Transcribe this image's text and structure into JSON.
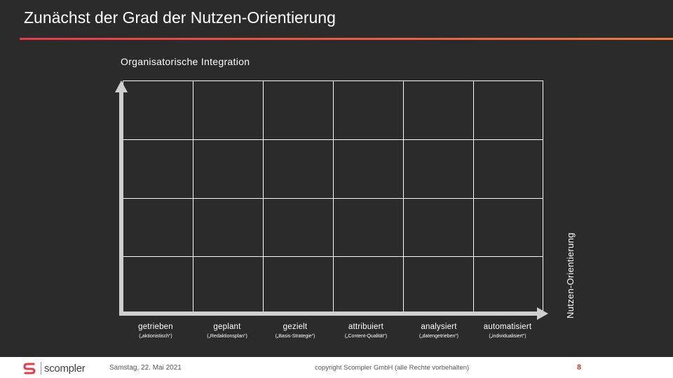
{
  "slide": {
    "title": "Zunächst der Grad der Nutzen-Orientierung",
    "accent_colors": [
      "#e63a4a",
      "#f07a3c"
    ]
  },
  "diagram": {
    "y_axis_label": "Organisatorische Integration",
    "x_axis_label": "Nutzen-Orientierung",
    "grid_columns": 6,
    "grid_rows": 4,
    "stages": [
      {
        "name": "getrieben",
        "sub": "(„aktionistisch“)"
      },
      {
        "name": "geplant",
        "sub": "(„Redaktionsplan“)"
      },
      {
        "name": "gezielt",
        "sub": "(„Basis-Strategie“)"
      },
      {
        "name": "attribuiert",
        "sub": "(„Content-Qualität“)"
      },
      {
        "name": "analysiert",
        "sub": "(„datengetrieben“)"
      },
      {
        "name": "automatisiert",
        "sub": "(„individualisiert“)"
      }
    ]
  },
  "footer": {
    "logo_text": "scompler",
    "logo_icon": "scompler-s-logo-icon",
    "date": "Samstag, 22. Mai 2021",
    "copyright": "copyright Scompler GmbH (alle Rechte vorbehalten)",
    "page_number": "8"
  }
}
